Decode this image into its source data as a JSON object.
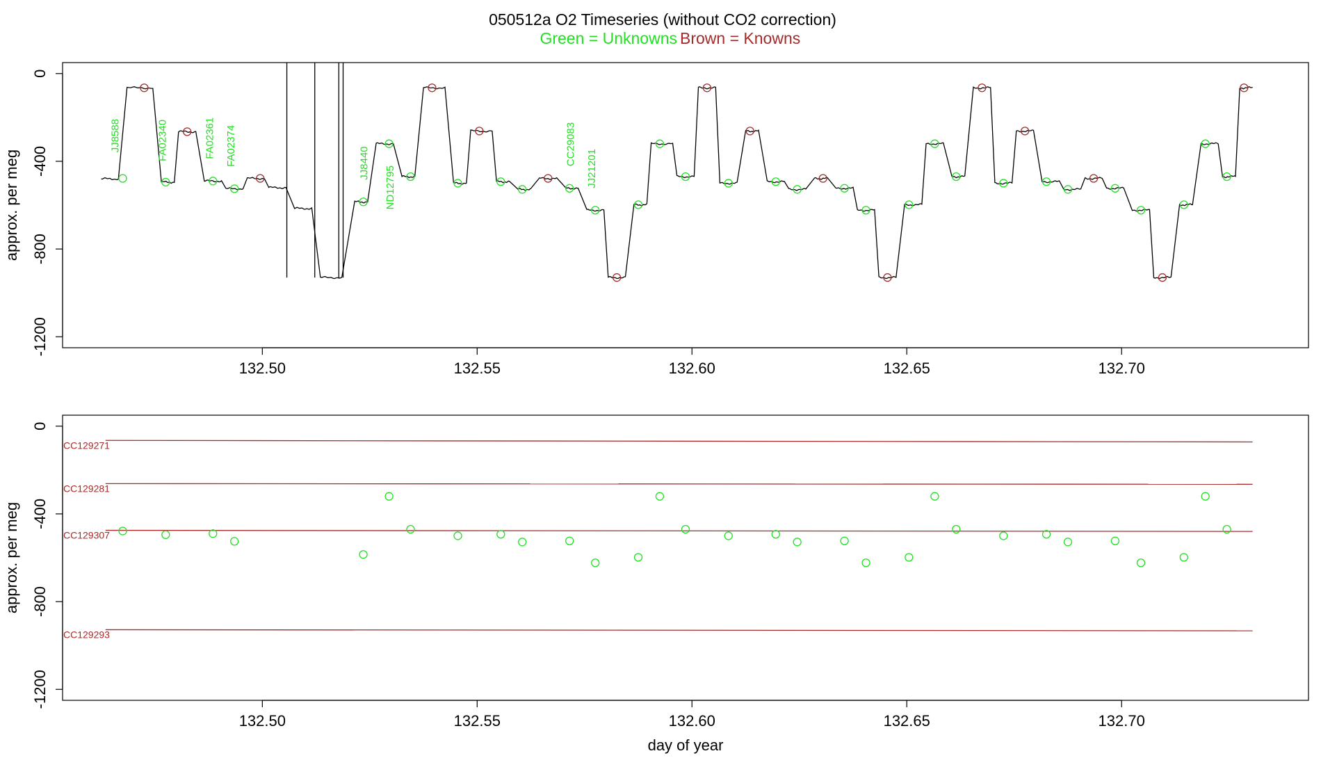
{
  "figure": {
    "title": "050512a   O2 Timeseries (without CO2 correction)",
    "legend_unknowns": "Green = Unknowns",
    "legend_knowns": "Brown = Knowns"
  },
  "colors": {
    "unknown": "#22e022",
    "known": "#a52a2a",
    "trace": "#000000",
    "axis": "#000000"
  },
  "chart_data": [
    {
      "type": "line",
      "title": "",
      "xlabel": "",
      "ylabel": "approx. per meg",
      "xlim": [
        132.4535,
        132.7435
      ],
      "ylim": [
        -1250,
        50
      ],
      "x_ticks": [
        "132.50",
        "132.55",
        "132.60",
        "132.65",
        "132.70"
      ],
      "y_ticks": [
        "0",
        "-400",
        "-800",
        "-1200"
      ],
      "grid": false,
      "trace_segments": [
        {
          "x0": 132.4625,
          "x1": 132.4665,
          "y": -480
        },
        {
          "x0": 132.4685,
          "x1": 132.4745,
          "y": -65
        },
        {
          "x0": 132.4765,
          "x1": 132.4795,
          "y": -495
        },
        {
          "x0": 132.4805,
          "x1": 132.4845,
          "y": -265
        },
        {
          "x0": 132.4865,
          "x1": 132.4905,
          "y": -490
        },
        {
          "x0": 132.4915,
          "x1": 132.4955,
          "y": -525
        },
        {
          "x0": 132.4965,
          "x1": 132.5005,
          "y": -478
        },
        {
          "x0": 132.5015,
          "x1": 132.5055,
          "y": -520
        },
        {
          "x0": 132.5075,
          "x1": 132.5115,
          "y": -615
        },
        {
          "x0": 132.5135,
          "x1": 132.5185,
          "y": -930
        },
        {
          "x0": 132.5215,
          "x1": 132.5245,
          "y": -585
        },
        {
          "x0": 132.5265,
          "x1": 132.5305,
          "y": -320
        },
        {
          "x0": 132.5325,
          "x1": 132.5355,
          "y": -470
        },
        {
          "x0": 132.5375,
          "x1": 132.5425,
          "y": -65
        },
        {
          "x0": 132.5445,
          "x1": 132.5475,
          "y": -500
        },
        {
          "x0": 132.5485,
          "x1": 132.5535,
          "y": -262
        },
        {
          "x0": 132.5545,
          "x1": 132.5575,
          "y": -493
        },
        {
          "x0": 132.5595,
          "x1": 132.5625,
          "y": -528
        },
        {
          "x0": 132.5645,
          "x1": 132.5685,
          "y": -478
        },
        {
          "x0": 132.5705,
          "x1": 132.5735,
          "y": -523
        },
        {
          "x0": 132.5755,
          "x1": 132.5795,
          "y": -623
        },
        {
          "x0": 132.5805,
          "x1": 132.5845,
          "y": -930
        },
        {
          "x0": 132.5865,
          "x1": 132.5895,
          "y": -598
        },
        {
          "x0": 132.5905,
          "x1": 132.5955,
          "y": -320
        },
        {
          "x0": 132.5965,
          "x1": 132.6005,
          "y": -470
        },
        {
          "x0": 132.6015,
          "x1": 132.6055,
          "y": -65
        },
        {
          "x0": 132.6065,
          "x1": 132.6105,
          "y": -500
        },
        {
          "x0": 132.6125,
          "x1": 132.6155,
          "y": -262
        },
        {
          "x0": 132.6175,
          "x1": 132.6215,
          "y": -493
        },
        {
          "x0": 132.6225,
          "x1": 132.6265,
          "y": -528
        },
        {
          "x0": 132.6285,
          "x1": 132.6315,
          "y": -478
        },
        {
          "x0": 132.6335,
          "x1": 132.6375,
          "y": -523
        },
        {
          "x0": 132.6385,
          "x1": 132.6425,
          "y": -623
        },
        {
          "x0": 132.6435,
          "x1": 132.6475,
          "y": -930
        },
        {
          "x0": 132.6495,
          "x1": 132.6535,
          "y": -598
        },
        {
          "x0": 132.6545,
          "x1": 132.6585,
          "y": -320
        },
        {
          "x0": 132.6605,
          "x1": 132.6635,
          "y": -470
        },
        {
          "x0": 132.6655,
          "x1": 132.6695,
          "y": -65
        },
        {
          "x0": 132.6705,
          "x1": 132.6745,
          "y": -500
        },
        {
          "x0": 132.6755,
          "x1": 132.6795,
          "y": -262
        },
        {
          "x0": 132.6815,
          "x1": 132.6855,
          "y": -493
        },
        {
          "x0": 132.6865,
          "x1": 132.6905,
          "y": -528
        },
        {
          "x0": 132.6915,
          "x1": 132.6955,
          "y": -478
        },
        {
          "x0": 132.6965,
          "x1": 132.7005,
          "y": -523
        },
        {
          "x0": 132.7025,
          "x1": 132.7065,
          "y": -623
        },
        {
          "x0": 132.7075,
          "x1": 132.7115,
          "y": -930
        },
        {
          "x0": 132.7135,
          "x1": 132.7165,
          "y": -598
        },
        {
          "x0": 132.7185,
          "x1": 132.7225,
          "y": -320
        },
        {
          "x0": 132.7235,
          "x1": 132.7265,
          "y": -470
        },
        {
          "x0": 132.7275,
          "x1": 132.7305,
          "y": -65
        }
      ],
      "spikes": [
        {
          "x": 132.5057,
          "y": 50
        },
        {
          "x": 132.5122,
          "y": 50
        },
        {
          "x": 132.5178,
          "y": 50
        },
        {
          "x": 132.5188,
          "y": 50
        }
      ],
      "unknowns": [
        {
          "x": 132.4675,
          "y": -478
        },
        {
          "x": 132.4775,
          "y": -495
        },
        {
          "x": 132.4885,
          "y": -490
        },
        {
          "x": 132.4935,
          "y": -525
        },
        {
          "x": 132.5235,
          "y": -585
        },
        {
          "x": 132.5295,
          "y": -320
        },
        {
          "x": 132.5345,
          "y": -470
        },
        {
          "x": 132.5455,
          "y": -500
        },
        {
          "x": 132.5555,
          "y": -493
        },
        {
          "x": 132.5605,
          "y": -528
        },
        {
          "x": 132.5715,
          "y": -523
        },
        {
          "x": 132.5775,
          "y": -623
        },
        {
          "x": 132.5875,
          "y": -598
        },
        {
          "x": 132.5925,
          "y": -320
        },
        {
          "x": 132.5985,
          "y": -470
        },
        {
          "x": 132.6085,
          "y": -500
        },
        {
          "x": 132.6195,
          "y": -493
        },
        {
          "x": 132.6245,
          "y": -528
        },
        {
          "x": 132.6355,
          "y": -523
        },
        {
          "x": 132.6405,
          "y": -623
        },
        {
          "x": 132.6505,
          "y": -598
        },
        {
          "x": 132.6565,
          "y": -320
        },
        {
          "x": 132.6615,
          "y": -470
        },
        {
          "x": 132.6725,
          "y": -500
        },
        {
          "x": 132.6825,
          "y": -493
        },
        {
          "x": 132.6875,
          "y": -528
        },
        {
          "x": 132.6985,
          "y": -523
        },
        {
          "x": 132.7045,
          "y": -623
        },
        {
          "x": 132.7145,
          "y": -598
        },
        {
          "x": 132.7195,
          "y": -320
        },
        {
          "x": 132.7245,
          "y": -470
        }
      ],
      "knowns": [
        {
          "x": 132.4725,
          "y": -65
        },
        {
          "x": 132.4825,
          "y": -265
        },
        {
          "x": 132.4995,
          "y": -478
        },
        {
          "x": 132.5395,
          "y": -65
        },
        {
          "x": 132.5505,
          "y": -262
        },
        {
          "x": 132.5665,
          "y": -478
        },
        {
          "x": 132.5825,
          "y": -930
        },
        {
          "x": 132.6035,
          "y": -65
        },
        {
          "x": 132.6135,
          "y": -262
        },
        {
          "x": 132.6305,
          "y": -478
        },
        {
          "x": 132.6455,
          "y": -930
        },
        {
          "x": 132.6675,
          "y": -65
        },
        {
          "x": 132.6775,
          "y": -262
        },
        {
          "x": 132.6935,
          "y": -478
        },
        {
          "x": 132.7095,
          "y": -930
        },
        {
          "x": 132.7285,
          "y": -65
        }
      ],
      "annotations": [
        {
          "text": "JJ8588",
          "x": 132.4665,
          "y": -360
        },
        {
          "text": "FA02340",
          "x": 132.4775,
          "y": -400
        },
        {
          "text": "FA02361",
          "x": 132.4885,
          "y": -390
        },
        {
          "text": "FA02374",
          "x": 132.4935,
          "y": -425
        },
        {
          "text": "JJ8440",
          "x": 132.5245,
          "y": -485
        },
        {
          "text": "ND12795",
          "x": 132.5305,
          "y": -620
        },
        {
          "text": "CC29083",
          "x": 132.5725,
          "y": -423
        },
        {
          "text": "JJ21201",
          "x": 132.5775,
          "y": -523
        }
      ]
    },
    {
      "type": "scatter",
      "title": "",
      "xlabel": "day of year",
      "ylabel": "approx. per meg",
      "xlim": [
        132.4535,
        132.7435
      ],
      "ylim": [
        -1250,
        50
      ],
      "x_ticks": [
        "132.50",
        "132.55",
        "132.60",
        "132.65",
        "132.70"
      ],
      "y_ticks": [
        "0",
        "-400",
        "-800",
        "-1200"
      ],
      "grid": false,
      "reference_lines": [
        {
          "name": "CC129271",
          "x0": 132.4635,
          "x1": 132.7305,
          "y0": -65,
          "y1": -72
        },
        {
          "name": "CC129281",
          "x0": 132.4635,
          "x1": 132.7305,
          "y0": -262,
          "y1": -265
        },
        {
          "name": "CC129307",
          "x0": 132.4635,
          "x1": 132.7305,
          "y0": -475,
          "y1": -480
        },
        {
          "name": "CC129293",
          "x0": 132.4635,
          "x1": 132.7305,
          "y0": -928,
          "y1": -933
        }
      ],
      "unknowns": [
        {
          "x": 132.4675,
          "y": -478
        },
        {
          "x": 132.4775,
          "y": -495
        },
        {
          "x": 132.4885,
          "y": -490
        },
        {
          "x": 132.4935,
          "y": -525
        },
        {
          "x": 132.5235,
          "y": -585
        },
        {
          "x": 132.5295,
          "y": -320
        },
        {
          "x": 132.5345,
          "y": -470
        },
        {
          "x": 132.5455,
          "y": -500
        },
        {
          "x": 132.5555,
          "y": -493
        },
        {
          "x": 132.5605,
          "y": -528
        },
        {
          "x": 132.5715,
          "y": -523
        },
        {
          "x": 132.5775,
          "y": -623
        },
        {
          "x": 132.5875,
          "y": -598
        },
        {
          "x": 132.5925,
          "y": -320
        },
        {
          "x": 132.5985,
          "y": -470
        },
        {
          "x": 132.6085,
          "y": -500
        },
        {
          "x": 132.6195,
          "y": -493
        },
        {
          "x": 132.6245,
          "y": -528
        },
        {
          "x": 132.6355,
          "y": -523
        },
        {
          "x": 132.6405,
          "y": -623
        },
        {
          "x": 132.6505,
          "y": -598
        },
        {
          "x": 132.6565,
          "y": -320
        },
        {
          "x": 132.6615,
          "y": -470
        },
        {
          "x": 132.6725,
          "y": -500
        },
        {
          "x": 132.6825,
          "y": -493
        },
        {
          "x": 132.6875,
          "y": -528
        },
        {
          "x": 132.6985,
          "y": -523
        },
        {
          "x": 132.7045,
          "y": -623
        },
        {
          "x": 132.7145,
          "y": -598
        },
        {
          "x": 132.7195,
          "y": -320
        },
        {
          "x": 132.7245,
          "y": -470
        }
      ]
    }
  ]
}
